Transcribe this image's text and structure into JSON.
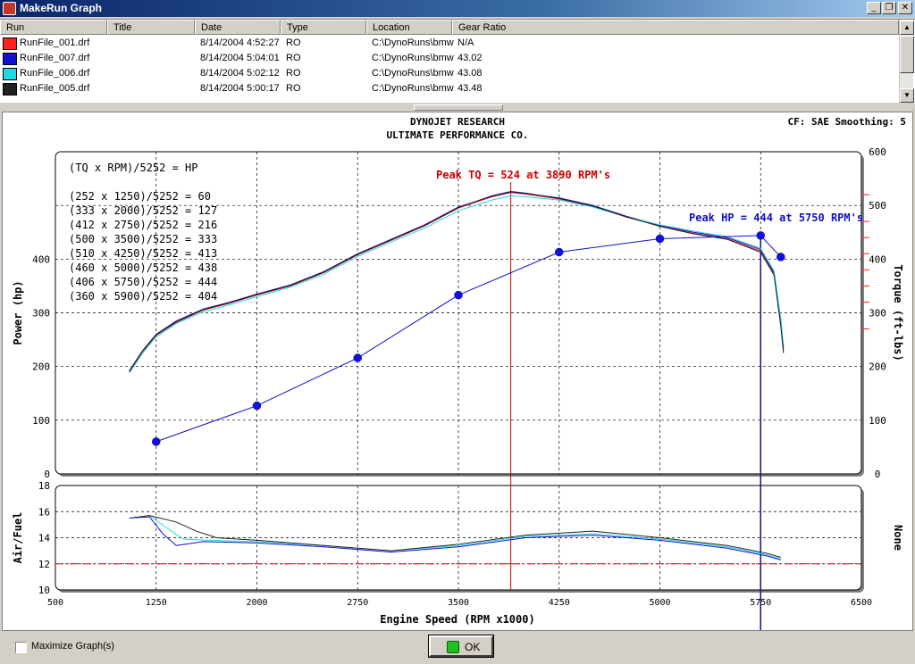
{
  "window": {
    "title": "MakeRun Graph",
    "minimize": "_",
    "restore": "❐",
    "close": "✕"
  },
  "list": {
    "columns": [
      "Run",
      "Title",
      "Date",
      "Type",
      "Location",
      "Gear Ratio"
    ],
    "rows": [
      {
        "run": "RunFile_001.drf",
        "title": "",
        "date": "8/14/2004 4:52:27",
        "type": "RO",
        "location": "C:\\DynoRuns\\bmw",
        "gear": "N/A",
        "color": "#ff2020"
      },
      {
        "run": "RunFile_007.drf",
        "title": "",
        "date": "8/14/2004 5:04:01",
        "type": "RO",
        "location": "C:\\DynoRuns\\bmw",
        "gear": "43.02",
        "color": "#1010d0"
      },
      {
        "run": "RunFile_006.drf",
        "title": "",
        "date": "8/14/2004 5:02:12",
        "type": "RO",
        "location": "C:\\DynoRuns\\bmw",
        "gear": "43.08",
        "color": "#20d8e0"
      },
      {
        "run": "RunFile_005.drf",
        "title": "",
        "date": "8/14/2004 5:00:17",
        "type": "RO",
        "location": "C:\\DynoRuns\\bmw",
        "gear": "43.48",
        "color": "#202020"
      }
    ]
  },
  "header": {
    "line1": "DYNOJET RESEARCH",
    "line2": "ULTIMATE PERFORMANCE CO.",
    "cf": "CF: SAE  Smoothing: 5"
  },
  "chart_data": [
    {
      "type": "line",
      "xlabel": "Engine Speed (RPM x1000)",
      "ylabel": "Power (hp)",
      "y2label": "Torque (ft-lbs)",
      "xlim": [
        500,
        6500
      ],
      "ylim": [
        0,
        600
      ],
      "x_ticks": [
        500,
        1250,
        2000,
        2750,
        3500,
        4250,
        5000,
        5750,
        6500
      ],
      "y_ticks": [
        0,
        100,
        200,
        300,
        400
      ],
      "y2_ticks": [
        0,
        100,
        200,
        300,
        400,
        500,
        600
      ],
      "grid": true,
      "formula_title": "(TQ x RPM)/5252 = HP",
      "formulas": [
        "(252 x 1250)/5252 = 60",
        "(333 x 2000)/5252 = 127",
        "(412 x 2750)/5252 = 216",
        "(500 x 3500)/5252 = 333",
        "(510 x 4250)/5252 = 413",
        "(460 x 5000)/5252 = 438",
        "(406 x 5750)/5252 = 444",
        "(360 x 5900)/5252 = 404"
      ],
      "annotations": {
        "peak_tq": "Peak TQ = 524 at 3890 RPM's",
        "peak_tq_rpm": 3890,
        "peak_hp": "Peak HP = 444 at 5750 RPM's",
        "peak_hp_rpm": 5750
      },
      "series": [
        {
          "name": "HP",
          "color": "#1010d0",
          "x": [
            1250,
            2000,
            2750,
            3500,
            4250,
            5000,
            5750,
            5900
          ],
          "y": [
            60,
            127,
            216,
            333,
            413,
            438,
            444,
            404
          ]
        },
        {
          "name": "RunFile_001.drf",
          "color": "#ff2020",
          "x": [
            1050,
            1150,
            1250,
            1400,
            1600,
            1800,
            2000,
            2250,
            2500,
            2750,
            3000,
            3250,
            3500,
            3750,
            3890,
            4000,
            4250,
            4500,
            4750,
            5000,
            5250,
            5500,
            5750,
            5850,
            5900,
            5920
          ],
          "y": [
            190,
            228,
            258,
            282,
            305,
            318,
            333,
            350,
            375,
            408,
            435,
            462,
            495,
            516,
            524,
            521,
            512,
            498,
            478,
            462,
            448,
            438,
            415,
            372,
            280,
            230
          ]
        },
        {
          "name": "RunFile_007.drf",
          "color": "#1010d0",
          "x": [
            1050,
            1150,
            1250,
            1400,
            1600,
            1800,
            2000,
            2250,
            2500,
            2750,
            3000,
            3250,
            3500,
            3750,
            3890,
            4000,
            4250,
            4500,
            4750,
            5000,
            5250,
            5500,
            5750,
            5850,
            5900,
            5920
          ],
          "y": [
            192,
            230,
            260,
            285,
            307,
            320,
            335,
            352,
            377,
            410,
            437,
            464,
            497,
            517,
            525,
            522,
            514,
            500,
            480,
            463,
            450,
            440,
            418,
            375,
            285,
            235
          ]
        },
        {
          "name": "RunFile_006.drf",
          "color": "#20d8e0",
          "x": [
            1050,
            1150,
            1250,
            1400,
            1600,
            1800,
            2000,
            2250,
            2500,
            2750,
            3000,
            3250,
            3500,
            3750,
            3890,
            4000,
            4250,
            4500,
            4750,
            5000,
            5250,
            5500,
            5750,
            5850,
            5900,
            5920
          ],
          "y": [
            187,
            225,
            255,
            280,
            302,
            315,
            330,
            348,
            372,
            405,
            432,
            458,
            490,
            510,
            518,
            516,
            510,
            497,
            479,
            464,
            452,
            442,
            420,
            378,
            290,
            240
          ]
        },
        {
          "name": "RunFile_005.drf",
          "color": "#202020",
          "x": [
            1050,
            1150,
            1250,
            1400,
            1600,
            1800,
            2000,
            2250,
            2500,
            2750,
            3000,
            3250,
            3500,
            3750,
            3890,
            4000,
            4250,
            4500,
            4750,
            5000,
            5250,
            5500,
            5750,
            5850,
            5900,
            5920
          ],
          "y": [
            191,
            229,
            259,
            283,
            306,
            319,
            334,
            351,
            376,
            409,
            436,
            463,
            496,
            518,
            526,
            523,
            513,
            499,
            479,
            461,
            447,
            437,
            413,
            370,
            275,
            225
          ]
        }
      ]
    },
    {
      "type": "line",
      "ylabel": "Air/Fuel",
      "y2label": "None",
      "xlim": [
        500,
        6500
      ],
      "ylim": [
        10,
        18
      ],
      "y_ticks": [
        10,
        12,
        14,
        16,
        18
      ],
      "grid": true,
      "reference_line": 12,
      "series": [
        {
          "name": "RunFile_007.drf",
          "color": "#1010d0",
          "x": [
            1050,
            1200,
            1300,
            1400,
            1600,
            2000,
            2500,
            3000,
            3500,
            4000,
            4500,
            5000,
            5500,
            5800,
            5900
          ],
          "y": [
            15.5,
            15.6,
            14.3,
            13.4,
            13.7,
            13.6,
            13.3,
            12.9,
            13.3,
            14.0,
            14.2,
            13.8,
            13.2,
            12.6,
            12.3
          ]
        },
        {
          "name": "RunFile_006.drf",
          "color": "#20d8e0",
          "x": [
            1050,
            1200,
            1350,
            1450,
            1650,
            2000,
            2500,
            3000,
            3500,
            4000,
            4500,
            5000,
            5500,
            5800,
            5900
          ],
          "y": [
            15.5,
            15.7,
            14.6,
            13.9,
            13.8,
            13.7,
            13.4,
            13.0,
            13.4,
            14.1,
            14.3,
            13.9,
            13.3,
            12.7,
            12.4
          ]
        },
        {
          "name": "RunFile_005.drf",
          "color": "#202020",
          "x": [
            1050,
            1200,
            1400,
            1550,
            1700,
            2000,
            2500,
            3000,
            3500,
            4000,
            4500,
            5000,
            5500,
            5800,
            5900
          ],
          "y": [
            15.5,
            15.7,
            15.2,
            14.5,
            14.0,
            13.8,
            13.4,
            13.0,
            13.5,
            14.2,
            14.5,
            14.0,
            13.4,
            12.8,
            12.5
          ]
        }
      ]
    }
  ],
  "footer": {
    "maximize_label": "Maximize Graph(s)",
    "ok_label": "OK"
  }
}
